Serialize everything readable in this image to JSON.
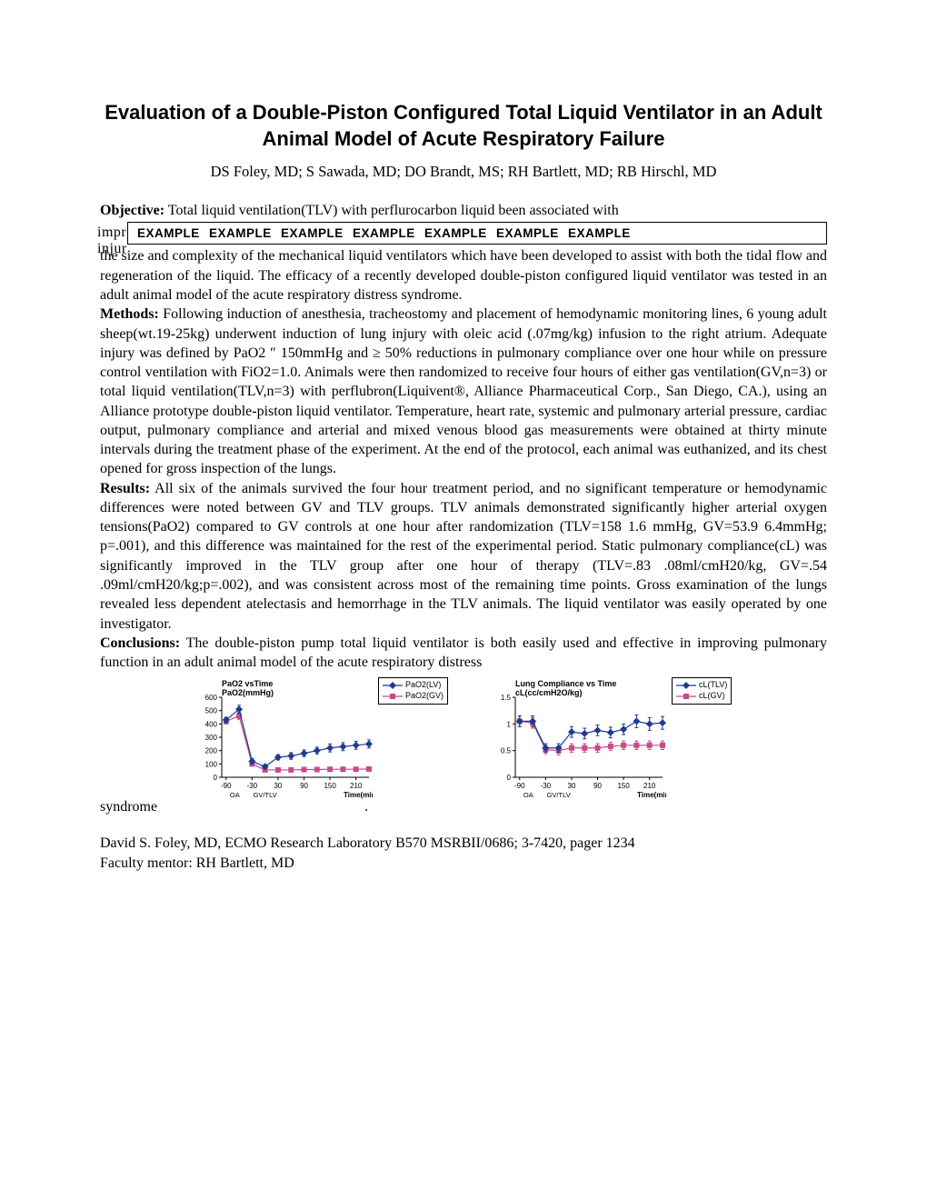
{
  "title": "Evaluation of a Double-Piston Configured Total Liquid Ventilator in an Adult Animal Model of Acute Respiratory Failure",
  "authors": "DS Foley, MD; S Sawada, MD; DO Brandt, MS; RH Bartlett, MD; RB Hirschl, MD",
  "sections": {
    "objective_label": "Objective:",
    "objective_line1": " Total liquid ventilation(TLV) with perflurocarbon liquid been associated with",
    "overlay_text": "EXAMPLE  EXAMPLE  EXAMPLE  EXAMPLE  EXAMPLE  EXAMPLE  EXAMPLE",
    "overlay_left_top": "impr",
    "overlay_left_bottom": "injur",
    "objective_rest": "the size and complexity of the mechanical liquid ventilators which have been developed to assist with both the tidal flow and regeneration of the liquid. The efficacy of a recently developed double-piston configured liquid ventilator was tested in an adult animal model of the acute respiratory distress syndrome.",
    "methods_label": "Methods:",
    "methods_text": " Following induction of anesthesia, tracheostomy and placement of hemodynamic monitoring lines, 6 young adult sheep(wt.19-25kg) underwent induction of lung injury with oleic acid (.07mg/kg) infusion to the right atrium. Adequate injury was defined by PaO2 ″ 150mmHg and  ≥ 50% reductions in pulmonary compliance over one hour while on pressure control ventilation with FiO2=1.0. Animals were then randomized to receive four hours of either gas ventilation(GV,n=3) or total liquid ventilation(TLV,n=3) with perflubron(Liquivent®, Alliance Pharmaceutical Corp., San Diego, CA.), using an Alliance prototype double-piston liquid ventilator. Temperature, heart rate, systemic and pulmonary arterial pressure, cardiac output, pulmonary compliance and arterial and mixed venous blood gas measurements were obtained at thirty minute intervals during the treatment phase of the experiment. At the end of the protocol, each animal was euthanized, and its chest opened for gross inspection of the lungs.",
    "results_label": "Results:",
    "results_text": "  All six of the animals survived the four hour treatment period, and no significant temperature or hemodynamic differences were noted between GV and TLV groups. TLV animals demonstrated significantly higher arterial oxygen tensions(PaO2) compared to GV controls at one hour after randomization (TLV=158 1.6 mmHg, GV=53.9 6.4mmHg; p=.001), and this difference was maintained for the rest of the experimental period. Static pulmonary compliance(cL) was significantly improved in the TLV group after one hour of therapy (TLV=.83 .08ml/cmH20/kg, GV=.54 .09ml/cmH20/kg;p=.002), and was consistent across most of the remaining time points. Gross examination of the lungs revealed less dependent atelectasis and hemorrhage in the TLV animals. The liquid ventilator was easily operated by one investigator.",
    "conclusions_label": "Conclusions:",
    "conclusions_text": " The double-piston pump total liquid ventilator is both easily used and effective in improving pulmonary function in an adult animal model of the acute respiratory distress",
    "syndrome_tail": "syndrome",
    "syndrome_period": "."
  },
  "chart1": {
    "type": "line",
    "title_line1": "PaO2 vsTime",
    "title_line2": "PaO2(mmHg)",
    "xlabel": "Time(min)",
    "x_annot1": "OA",
    "x_annot2": "GV/TLV",
    "legend": [
      {
        "label": "PaO2(LV)",
        "color": "#1f3b8f",
        "marker": "diamond"
      },
      {
        "label": "PaO2(GV)",
        "color": "#c74a8a",
        "marker": "square"
      }
    ],
    "yticks": [
      0,
      100,
      200,
      300,
      400,
      500,
      600
    ],
    "xticks": [
      -90,
      -30,
      30,
      90,
      150,
      210
    ],
    "xlim": [
      -100,
      240
    ],
    "ylim": [
      0,
      600
    ],
    "series_lv": {
      "x": [
        -90,
        -60,
        -30,
        0,
        30,
        60,
        90,
        120,
        150,
        180,
        210,
        240
      ],
      "y": [
        430,
        510,
        120,
        80,
        150,
        160,
        180,
        200,
        220,
        230,
        240,
        250
      ],
      "err": [
        20,
        30,
        20,
        15,
        20,
        25,
        25,
        25,
        30,
        30,
        30,
        30
      ]
    },
    "series_gv": {
      "x": [
        -90,
        -60,
        -30,
        0,
        30,
        60,
        90,
        120,
        150,
        180,
        210,
        240
      ],
      "y": [
        420,
        460,
        100,
        55,
        55,
        55,
        58,
        58,
        60,
        60,
        60,
        62
      ],
      "err": [
        20,
        25,
        15,
        10,
        10,
        10,
        10,
        10,
        12,
        12,
        12,
        12
      ]
    },
    "colors": {
      "lv": "#1f3b8f",
      "gv": "#c74a8a",
      "axis": "#000000",
      "tick_font": "#000000"
    },
    "font_size_title": 9,
    "font_size_ticks": 8,
    "line_width": 1.2,
    "marker_size": 4
  },
  "chart2": {
    "type": "line",
    "title_line1": "Lung Compliance vs Time",
    "title_line2": "cL(cc/cmH2O/kg)",
    "xlabel": "Time(min)",
    "x_annot1": "OA",
    "x_annot2": "GV/TLV",
    "legend": [
      {
        "label": "cL(TLV)",
        "color": "#1f3b8f",
        "marker": "diamond"
      },
      {
        "label": "cL(GV)",
        "color": "#c74a8a",
        "marker": "square"
      }
    ],
    "yticks": [
      0,
      0.5,
      1,
      1.5
    ],
    "xticks": [
      -90,
      -30,
      30,
      90,
      150,
      210
    ],
    "xlim": [
      -100,
      240
    ],
    "ylim": [
      0,
      1.5
    ],
    "series_lv": {
      "x": [
        -90,
        -60,
        -30,
        0,
        30,
        60,
        90,
        120,
        150,
        180,
        210,
        240
      ],
      "y": [
        1.05,
        1.05,
        0.55,
        0.55,
        0.85,
        0.82,
        0.88,
        0.84,
        0.9,
        1.05,
        1.0,
        1.02
      ],
      "err": [
        0.1,
        0.1,
        0.08,
        0.08,
        0.1,
        0.1,
        0.1,
        0.1,
        0.1,
        0.12,
        0.12,
        0.12
      ]
    },
    "series_gv": {
      "x": [
        -90,
        -60,
        -30,
        0,
        30,
        60,
        90,
        120,
        150,
        180,
        210,
        240
      ],
      "y": [
        1.05,
        1.02,
        0.52,
        0.5,
        0.55,
        0.55,
        0.55,
        0.58,
        0.6,
        0.6,
        0.6,
        0.6
      ],
      "err": [
        0.1,
        0.1,
        0.08,
        0.08,
        0.08,
        0.08,
        0.08,
        0.08,
        0.08,
        0.08,
        0.08,
        0.08
      ]
    },
    "colors": {
      "lv": "#1f3b8f",
      "gv": "#c74a8a",
      "axis": "#000000"
    },
    "font_size_title": 9,
    "font_size_ticks": 8,
    "line_width": 1.2,
    "marker_size": 4
  },
  "footer": {
    "line1": "David S. Foley, MD, ECMO Research Laboratory B570 MSRBII/0686; 3-7420, pager 1234",
    "line2": "Faculty mentor: RH Bartlett, MD"
  }
}
